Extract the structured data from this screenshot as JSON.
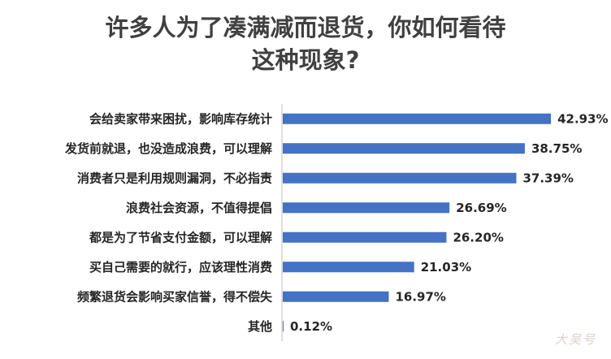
{
  "chart_data": {
    "type": "bar",
    "orientation": "horizontal",
    "title_line1": "许多人为了凑满减而退货，你如何看待",
    "title_line2": "这种现象?",
    "categories": [
      "会给卖家带来困扰，影响库存统计",
      "发货前就退，也没造成浪费，可以理解",
      "消费者只是利用规则漏洞，不必指责",
      "浪费社会资源，不值得提倡",
      "都是为了节省支付金额，可以理解",
      "买自己需要的就行，应该理性消费",
      "频繁退货会影响买家信誉，得不偿失",
      "其他"
    ],
    "values": [
      42.93,
      38.75,
      37.39,
      26.69,
      26.2,
      21.03,
      16.97,
      0.12
    ],
    "value_labels": [
      "42.93%",
      "38.75%",
      "37.39%",
      "26.69%",
      "26.20%",
      "21.03%",
      "16.97%",
      "0.12%"
    ],
    "xlim": [
      0,
      45
    ],
    "grid": false,
    "bar_color": "#4472c4",
    "axis_color": "#bfbfbf"
  },
  "watermark": "大吴号"
}
